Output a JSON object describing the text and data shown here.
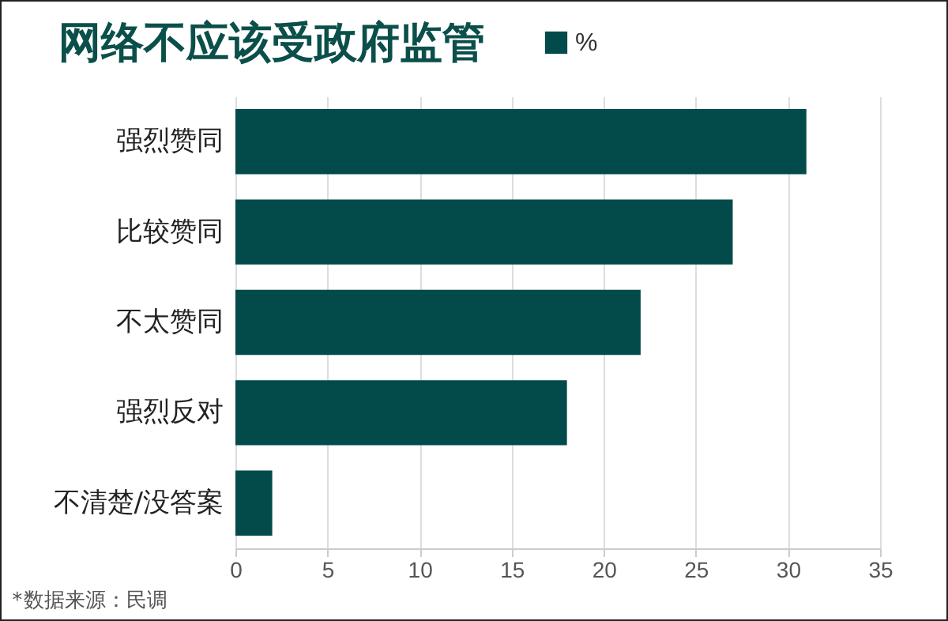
{
  "chart_data": {
    "type": "bar",
    "orientation": "horizontal",
    "title": "网络不应该受政府监管",
    "categories": [
      "强烈赞同",
      "比较赞同",
      "不太赞同",
      "强烈反对",
      "不清楚/没答案"
    ],
    "series": [
      {
        "name": "%",
        "color": "#034b4a",
        "values": [
          31,
          27,
          22,
          18,
          2
        ]
      }
    ],
    "xlim": [
      0,
      35
    ],
    "xticks": [
      0,
      5,
      10,
      15,
      20,
      25,
      30,
      35
    ],
    "grid": "x",
    "legend": "top",
    "annotations": [
      "*数据来源：民调"
    ]
  }
}
